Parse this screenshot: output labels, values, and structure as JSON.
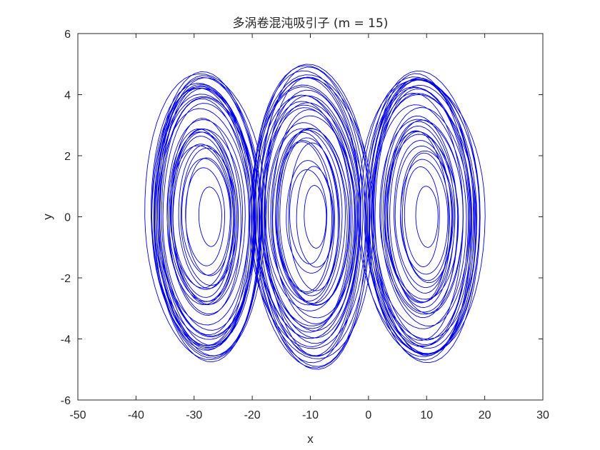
{
  "chart_data": {
    "type": "line",
    "title": "多涡卷混沌吸引子 (m = 15)",
    "xlabel": "x",
    "ylabel": "y",
    "xlim": [
      -50,
      30
    ],
    "ylim": [
      -6,
      6
    ],
    "xticks": [
      -50,
      -40,
      -30,
      -20,
      -10,
      0,
      10,
      20,
      30
    ],
    "yticks": [
      -6,
      -4,
      -2,
      0,
      2,
      4,
      6
    ],
    "grid": false,
    "series": [
      {
        "color": "#0000e6",
        "scrolls": [
          {
            "center_x": -28,
            "x_range": [
              -40,
              -17
            ],
            "y_range": [
              -4.8,
              5.0
            ]
          },
          {
            "center_x": -10,
            "x_range": [
              -21,
              2
            ],
            "y_range": [
              -5.0,
              5.0
            ]
          },
          {
            "center_x": 9,
            "x_range": [
              -3,
              20
            ],
            "y_range": [
              -5.0,
              4.8
            ]
          }
        ]
      }
    ]
  }
}
